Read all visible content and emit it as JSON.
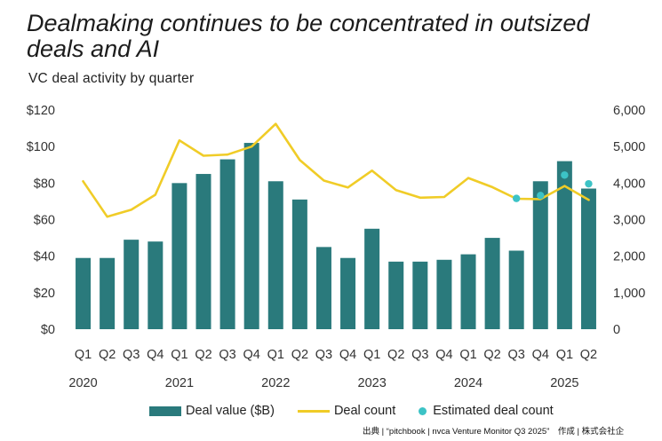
{
  "header": {
    "title": "Dealmaking continues to be concentrated in outsized deals and AI",
    "subtitle": "VC deal activity by quarter"
  },
  "source": "出典 | “pitchbook | nvca Venture Monitor Q3 2025”　作成 | 株式会社企",
  "colors": {
    "bar": "#2a7a7c",
    "line": "#f0cc27",
    "estimate": "#3cc3c6"
  },
  "chart_data": {
    "type": "bar",
    "categories": [
      "Q1",
      "Q2",
      "Q3",
      "Q4",
      "Q1",
      "Q2",
      "Q3",
      "Q4",
      "Q1",
      "Q2",
      "Q3",
      "Q4",
      "Q1",
      "Q2",
      "Q3",
      "Q4",
      "Q1",
      "Q2",
      "Q3",
      "Q4",
      "Q1",
      "Q2"
    ],
    "year_labels": [
      {
        "label": "2020",
        "quarter_index": 0
      },
      {
        "label": "2021",
        "quarter_index": 4
      },
      {
        "label": "2022",
        "quarter_index": 8
      },
      {
        "label": "2023",
        "quarter_index": 12
      },
      {
        "label": "2024",
        "quarter_index": 16
      },
      {
        "label": "2025",
        "quarter_index": 20
      }
    ],
    "series": [
      {
        "name": "Deal value ($B)",
        "type": "bar",
        "axis": "left",
        "values": [
          39,
          39,
          49,
          48,
          80,
          85,
          93,
          102,
          81,
          71,
          45,
          39,
          55,
          37,
          37,
          38,
          41,
          50,
          43,
          81,
          92,
          77
        ]
      },
      {
        "name": "Deal count",
        "type": "line",
        "axis": "right",
        "values": [
          4050,
          3080,
          3270,
          3680,
          5170,
          4750,
          4780,
          5000,
          5620,
          4630,
          4070,
          3880,
          4340,
          3810,
          3600,
          3620,
          4140,
          3890,
          3570,
          3560,
          3920,
          3540
        ]
      },
      {
        "name": "Estimated deal count",
        "type": "scatter",
        "axis": "right",
        "points": [
          {
            "index": 18,
            "value": 3580
          },
          {
            "index": 19,
            "value": 3660
          },
          {
            "index": 20,
            "value": 4220
          },
          {
            "index": 21,
            "value": 3980
          }
        ]
      }
    ],
    "left_axis": {
      "ticks": [
        "$0",
        "$20",
        "$40",
        "$60",
        "$80",
        "$100",
        "$120"
      ],
      "min": 0,
      "max": 120
    },
    "right_axis": {
      "ticks": [
        "0",
        "1,000",
        "2,000",
        "3,000",
        "4,000",
        "5,000",
        "6,000"
      ],
      "min": 0,
      "max": 6000
    },
    "legend": [
      "Deal value ($B)",
      "Deal count",
      "Estimated deal count"
    ],
    "legend_position": "bottom",
    "grid": false
  }
}
